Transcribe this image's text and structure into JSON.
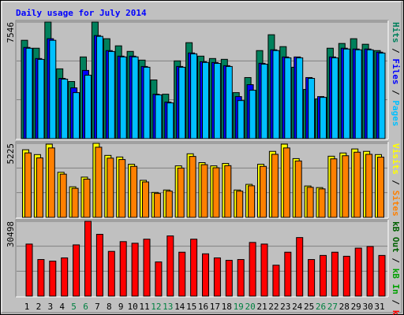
{
  "chart_data": [
    {
      "type": "bar",
      "title": "Daily usage for July 2014",
      "legend_separator": " / ",
      "ylim": [
        0,
        7546
      ],
      "yticks": [
        7546
      ],
      "grid": true,
      "series": [
        {
          "name": "Hits",
          "color": "#00805c",
          "values": [
            6365,
            5852,
            7546,
            4517,
            3696,
            5287,
            7546,
            6468,
            6006,
            5646,
            5082,
            3799,
            2875,
            5031,
            6211,
            5339,
            5185,
            5133,
            2977,
            3953,
            5698,
            6725,
            5955,
            4620,
            3183,
            2567,
            5852,
            6160,
            6468,
            6109,
            5698
          ]
        },
        {
          "name": "Files",
          "color": "#0000ff",
          "values": [
            5903,
            5185,
            6468,
            3901,
            3285,
            4415,
            6673,
            5698,
            5339,
            5339,
            4671,
            2875,
            2361,
            4671,
            5544,
            4979,
            4928,
            4722,
            2721,
            3491,
            4877,
            5749,
            5287,
            5287,
            3953,
            2721,
            5287,
            5852,
            5800,
            5800,
            5595
          ]
        },
        {
          "name": "Pages",
          "color": "#00c0ff",
          "values": [
            5850,
            5130,
            6365,
            3850,
            2977,
            4107,
            6620,
            5640,
            5290,
            5290,
            4620,
            2830,
            2310,
            4620,
            5490,
            4930,
            4870,
            4670,
            2464,
            3131,
            4820,
            5700,
            5230,
            5230,
            3900,
            2670,
            5230,
            5800,
            5750,
            5750,
            5540
          ]
        }
      ]
    },
    {
      "type": "bar",
      "legend_separator": " / ",
      "ylim": [
        0,
        5225
      ],
      "yticks": [
        5225
      ],
      "grid": true,
      "series": [
        {
          "name": "Visits",
          "color": "#ffff00",
          "values": [
            4771,
            4430,
            5168,
            3180,
            2158,
            2840,
            5225,
            4373,
            4260,
            3748,
            2613,
            1761,
            1931,
            3635,
            4487,
            3862,
            3635,
            3805,
            1931,
            2329,
            3748,
            4657,
            5168,
            4146,
            2215,
            2102,
            4316,
            4544,
            4828,
            4657,
            4430
          ]
        },
        {
          "name": "Sites",
          "color": "#ff8000",
          "values": [
            4550,
            4200,
            4900,
            3050,
            2050,
            2700,
            4950,
            4180,
            4080,
            3600,
            2500,
            1690,
            1850,
            3480,
            4300,
            3720,
            3500,
            3650,
            1850,
            2230,
            3600,
            4450,
            4900,
            3980,
            2120,
            2010,
            4130,
            4350,
            4600,
            4450,
            4250
          ]
        }
      ]
    },
    {
      "type": "bar",
      "legend_separator": " / ",
      "ylim": [
        0,
        30498
      ],
      "yticks": [
        30498
      ],
      "grid": true,
      "categories": [
        "1",
        "2",
        "3",
        "4",
        "5",
        "6",
        "7",
        "8",
        "9",
        "10",
        "11",
        "12",
        "13",
        "14",
        "15",
        "16",
        "17",
        "18",
        "19",
        "20",
        "21",
        "22",
        "23",
        "24",
        "25",
        "26",
        "27",
        "28",
        "29",
        "30",
        "31"
      ],
      "highlight": {
        "indices": [
          4,
          5,
          11,
          12,
          18,
          19,
          25,
          26
        ],
        "color": "#008040"
      },
      "series": [
        {
          "name": "kB Out",
          "color": "#006000",
          "values": [
            0,
            0,
            0,
            0,
            0,
            0,
            0,
            0,
            0,
            0,
            0,
            0,
            0,
            0,
            0,
            0,
            0,
            0,
            0,
            0,
            0,
            0,
            0,
            0,
            0,
            0,
            0,
            0,
            0,
            0,
            0
          ]
        },
        {
          "name": "kB In",
          "color": "#00a000",
          "values": [
            0,
            0,
            0,
            0,
            0,
            0,
            0,
            0,
            0,
            0,
            0,
            0,
            0,
            0,
            0,
            0,
            0,
            0,
            0,
            0,
            0,
            0,
            0,
            0,
            0,
            0,
            0,
            0,
            0,
            0,
            0
          ]
        },
        {
          "name": "kB F",
          "color": "#ff0000",
          "values": [
            21216,
            14917,
            14255,
            15581,
            20884,
            30498,
            25194,
            18233,
            22211,
            21548,
            23206,
            13923,
            24531,
            17901,
            23206,
            17238,
            15581,
            14586,
            14917,
            21880,
            21216,
            12597,
            17901,
            23868,
            14917,
            16575,
            17901,
            16244,
            19559,
            20222,
            16575
          ]
        }
      ]
    }
  ]
}
